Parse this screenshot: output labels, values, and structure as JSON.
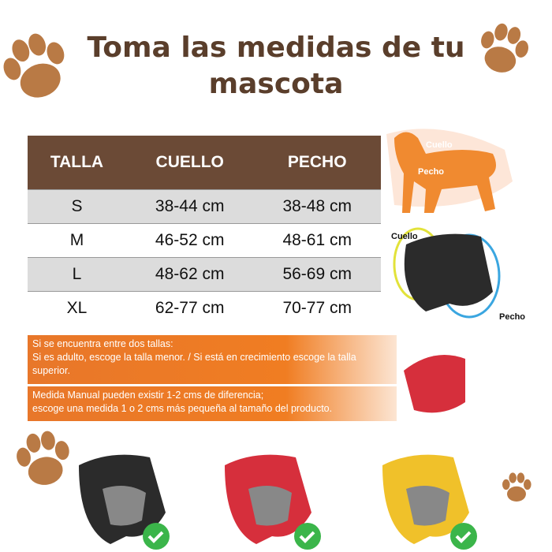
{
  "header": {
    "title": "Toma las medidas de tu mascota"
  },
  "table": {
    "columns": [
      "TALLA",
      "CUELLO",
      "PECHO"
    ],
    "rows": [
      [
        "S",
        "38-44 cm",
        "38-48 cm"
      ],
      [
        "M",
        "46-52 cm",
        "48-61 cm"
      ],
      [
        "L",
        "48-62 cm",
        "56-69 cm"
      ],
      [
        "XL",
        "62-77 cm",
        "70-77 cm"
      ]
    ]
  },
  "dog_diagram": {
    "neck_label": "Cuello",
    "chest_label": "Pecho"
  },
  "harness_diagram": {
    "neck_label": "Cuello",
    "chest_label": "Pecho"
  },
  "notes": [
    {
      "lines": [
        "Si se encuentra entre dos tallas:",
        "Si es adulto, escoge la talla menor. / Si está en crecimiento escoge la talla superior."
      ]
    },
    {
      "lines": [
        "Medida Manual pueden existir 1-2 cms de diferencia;",
        "escoge una medida 1 o 2 cms más pequeña al tamaño del producto."
      ]
    }
  ]
}
